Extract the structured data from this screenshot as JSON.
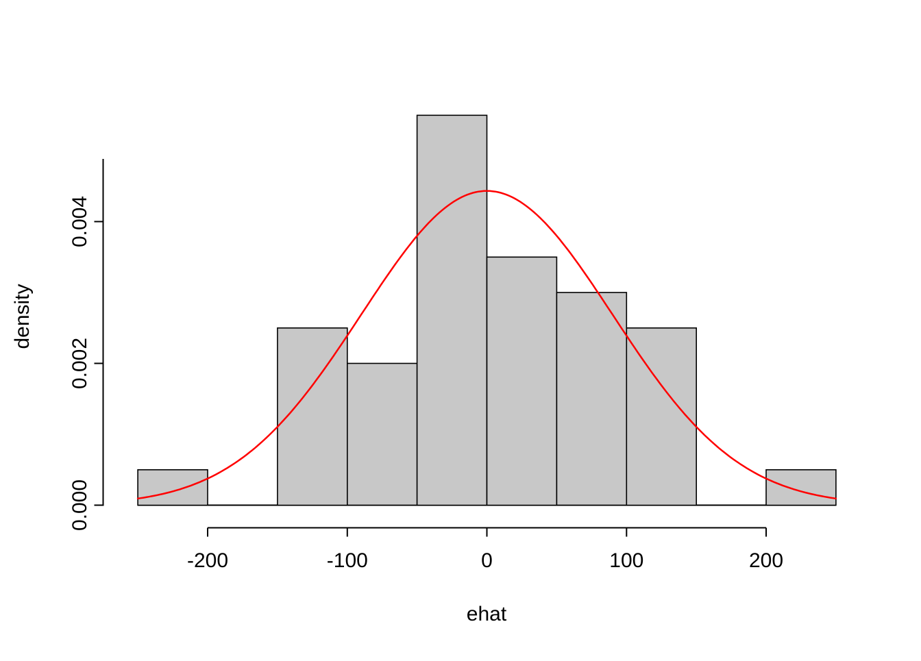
{
  "figure": {
    "background": "#ffffff"
  },
  "chart_data": {
    "type": "histogram",
    "title": "",
    "xlabel": "ehat",
    "ylabel": "density",
    "x_ticks": [
      -200,
      -100,
      0,
      100,
      200
    ],
    "x_tick_labels": [
      "-200",
      "-100",
      "0",
      "100",
      "200"
    ],
    "y_ticks": [
      0,
      0.002,
      0.004
    ],
    "y_tick_labels": [
      "0.000",
      "0.002",
      "0.004"
    ],
    "xlim": [
      -275,
      275
    ],
    "ylim": [
      0,
      0.0057
    ],
    "bin_width": 50,
    "bins": [
      {
        "x0": -250,
        "x1": -200,
        "density": 0.0005
      },
      {
        "x0": -200,
        "x1": -150,
        "density": 0
      },
      {
        "x0": -150,
        "x1": -100,
        "density": 0.0025
      },
      {
        "x0": -100,
        "x1": -50,
        "density": 0.002
      },
      {
        "x0": -50,
        "x1": 0,
        "density": 0.0055
      },
      {
        "x0": 0,
        "x1": 50,
        "density": 0.0035
      },
      {
        "x0": 50,
        "x1": 100,
        "density": 0.003
      },
      {
        "x0": 100,
        "x1": 150,
        "density": 0.0025
      },
      {
        "x0": 150,
        "x1": 200,
        "density": 0
      },
      {
        "x0": 200,
        "x1": 250,
        "density": 0.0005
      }
    ],
    "curve": {
      "type": "normal-density",
      "mean": 0,
      "sd": 90,
      "color": "#ff0000"
    },
    "bar_fill": "#c8c8c8",
    "bar_stroke": "#000000",
    "grid": false,
    "legend": null
  }
}
